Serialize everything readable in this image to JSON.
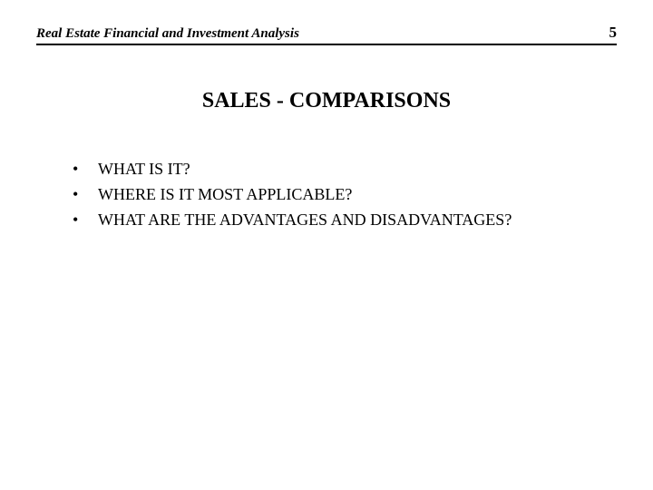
{
  "header": {
    "title": "Real Estate Financial and Investment Analysis",
    "page_number": "5"
  },
  "main": {
    "title": "SALES - COMPARISONS",
    "bullets": [
      "WHAT IS IT?",
      "WHERE IS IT MOST APPLICABLE?",
      "WHAT ARE THE ADVANTAGES AND DISADVANTAGES?"
    ]
  },
  "style": {
    "background_color": "#ffffff",
    "text_color": "#000000",
    "rule_color": "#000000",
    "header_fontsize": 15,
    "pagenum_fontsize": 17,
    "title_fontsize": 24,
    "bullet_fontsize": 18
  }
}
